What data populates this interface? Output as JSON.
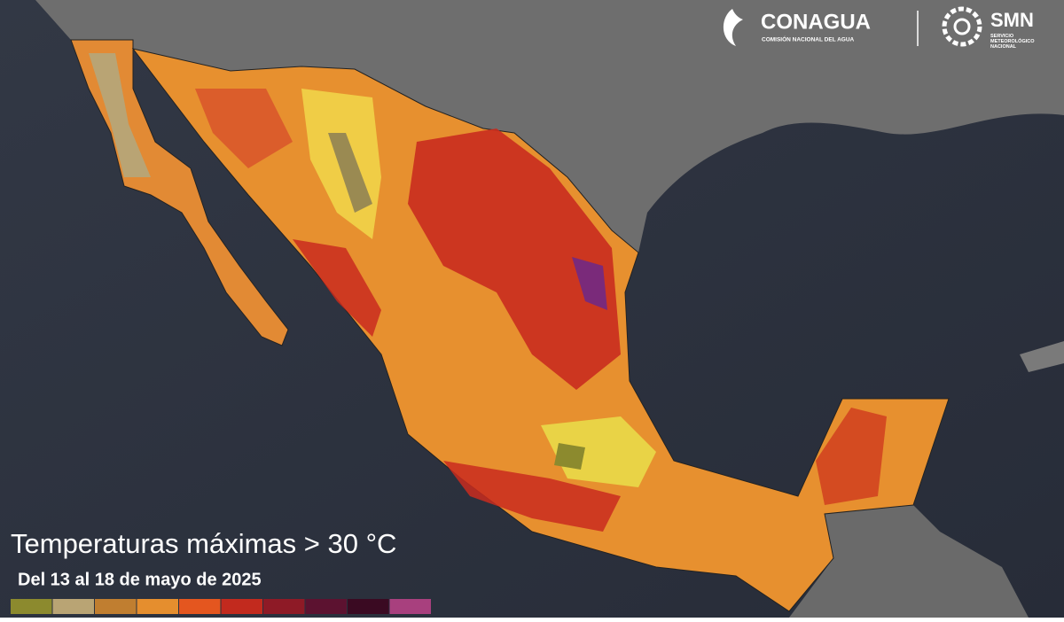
{
  "header": {
    "logo_left": {
      "name": "CONAGUA",
      "subtitle": "COMISIÓN NACIONAL DEL AGUA"
    },
    "logo_right": {
      "name": "SMN",
      "subtitle": "SERVICIO METEOROLÓGICO NACIONAL"
    }
  },
  "map": {
    "title": "Temperaturas máximas > 30 °C",
    "subtitle": "Del 13 al 18 de mayo de 2025",
    "legend_colors": [
      "#8c8a2e",
      "#b9a474",
      "#c07e30",
      "#e58e2e",
      "#e4561f",
      "#c22a1e",
      "#8e1a26",
      "#5c1230",
      "#3a0a22",
      "#a8407e"
    ]
  }
}
